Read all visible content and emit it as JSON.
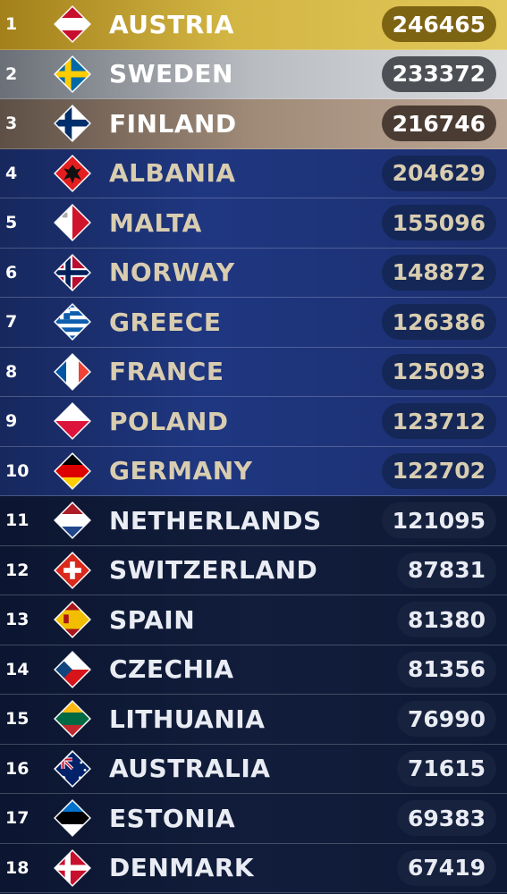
{
  "rows": [
    {
      "rank": "1",
      "country": "AUSTRIA",
      "score": "246465",
      "tier": "gold",
      "flag": "austria-flag-icon"
    },
    {
      "rank": "2",
      "country": "SWEDEN",
      "score": "233372",
      "tier": "silver",
      "flag": "sweden-flag-icon"
    },
    {
      "rank": "3",
      "country": "FINLAND",
      "score": "216746",
      "tier": "bronze",
      "flag": "finland-flag-icon"
    },
    {
      "rank": "4",
      "country": "ALBANIA",
      "score": "204629",
      "tier": "blue",
      "flag": "albania-flag-icon"
    },
    {
      "rank": "5",
      "country": "MALTA",
      "score": "155096",
      "tier": "blue",
      "flag": "malta-flag-icon"
    },
    {
      "rank": "6",
      "country": "NORWAY",
      "score": "148872",
      "tier": "blue",
      "flag": "norway-flag-icon"
    },
    {
      "rank": "7",
      "country": "GREECE",
      "score": "126386",
      "tier": "blue",
      "flag": "greece-flag-icon"
    },
    {
      "rank": "8",
      "country": "FRANCE",
      "score": "125093",
      "tier": "blue",
      "flag": "france-flag-icon"
    },
    {
      "rank": "9",
      "country": "POLAND",
      "score": "123712",
      "tier": "blue",
      "flag": "poland-flag-icon"
    },
    {
      "rank": "10",
      "country": "GERMANY",
      "score": "122702",
      "tier": "blue",
      "flag": "germany-flag-icon"
    },
    {
      "rank": "11",
      "country": "NETHERLANDS",
      "score": "121095",
      "tier": "dark",
      "flag": "netherlands-flag-icon"
    },
    {
      "rank": "12",
      "country": "SWITZERLAND",
      "score": "87831",
      "tier": "dark",
      "flag": "switzerland-flag-icon"
    },
    {
      "rank": "13",
      "country": "SPAIN",
      "score": "81380",
      "tier": "dark",
      "flag": "spain-flag-icon"
    },
    {
      "rank": "14",
      "country": "CZECHIA",
      "score": "81356",
      "tier": "dark",
      "flag": "czechia-flag-icon"
    },
    {
      "rank": "15",
      "country": "LITHUANIA",
      "score": "76990",
      "tier": "dark",
      "flag": "lithuania-flag-icon"
    },
    {
      "rank": "16",
      "country": "AUSTRALIA",
      "score": "71615",
      "tier": "dark",
      "flag": "australia-flag-icon"
    },
    {
      "rank": "17",
      "country": "ESTONIA",
      "score": "69383",
      "tier": "dark",
      "flag": "estonia-flag-icon"
    },
    {
      "rank": "18",
      "country": "DENMARK",
      "score": "67419",
      "tier": "dark",
      "flag": "denmark-flag-icon"
    }
  ],
  "colors": {
    "gold": "#d2b543",
    "silver": "#b9bcc1",
    "bronze": "#a08a78",
    "blue": "#1f3781",
    "dark": "#111d3b"
  }
}
